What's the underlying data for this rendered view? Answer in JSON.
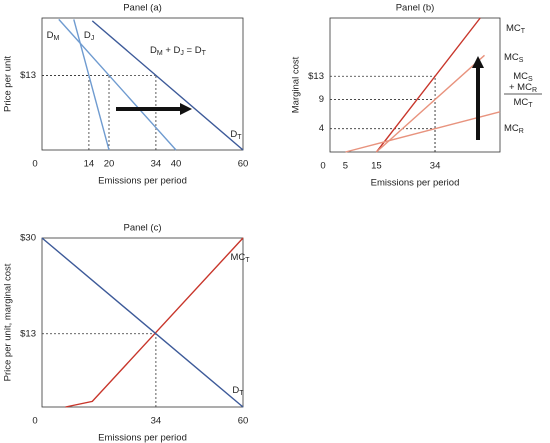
{
  "chart_data": [
    {
      "type": "line",
      "title": "Panel (a)",
      "x_label": "Emissions per period",
      "y_label": "Price per unit",
      "xlim": [
        0,
        60
      ],
      "ylim": [
        0,
        23
      ],
      "xticks": [
        0,
        14,
        20,
        34,
        40,
        60
      ],
      "yticks": [
        {
          "value": 13,
          "label": "$13"
        }
      ],
      "series": [
        {
          "name": [
            {
              "text": "D"
            },
            {
              "text": "M",
              "sub": true
            }
          ],
          "color": "#6f9bd0",
          "x": [
            5,
            40
          ],
          "values": [
            22.75,
            0
          ]
        },
        {
          "name": [
            {
              "text": "D"
            },
            {
              "text": "J",
              "sub": true
            }
          ],
          "color": "#6f9bd0",
          "x": [
            9.5,
            20
          ],
          "values": [
            22.75,
            0
          ]
        },
        {
          "name": [
            {
              "text": "D"
            },
            {
              "text": "T",
              "sub": true
            }
          ],
          "color": "#3d5a99",
          "x": [
            15,
            60
          ],
          "values": [
            22.5,
            0
          ]
        }
      ],
      "guides": [
        {
          "x": 14,
          "y": 13
        },
        {
          "x": 20,
          "y": 13
        },
        {
          "x": 34,
          "y": 13
        }
      ],
      "annotation_lines": [
        [
          {
            "text": "D"
          },
          {
            "text": "M",
            "sub": true
          },
          {
            "text": " + D"
          },
          {
            "text": "J",
            "sub": true
          },
          {
            "text": " = D"
          },
          {
            "text": "T",
            "sub": true
          }
        ]
      ]
    },
    {
      "type": "line",
      "title": "Panel (b)",
      "x_label": "Emissions per period",
      "y_label": "Marginal cost",
      "xlim": [
        0,
        55
      ],
      "ylim": [
        0,
        23
      ],
      "xticks": [
        0,
        5,
        15,
        34
      ],
      "yticks": [
        4,
        9,
        {
          "value": 13,
          "label": "$13"
        }
      ],
      "series": [
        {
          "name": [
            {
              "text": "MC"
            },
            {
              "text": "T",
              "sub": true
            }
          ],
          "color": "#c8362b",
          "x": [
            15,
            48.6
          ],
          "values": [
            0,
            23
          ]
        },
        {
          "name": [
            {
              "text": "MC"
            },
            {
              "text": "S",
              "sub": true
            }
          ],
          "color": "#e8937e",
          "x": [
            15,
            50
          ],
          "values": [
            0,
            16.6
          ]
        },
        {
          "name": [
            {
              "text": "MC"
            },
            {
              "text": "R",
              "sub": true
            }
          ],
          "color": "#e8937e",
          "x": [
            5,
            55
          ],
          "values": [
            0,
            6.9
          ]
        }
      ],
      "guides": [
        {
          "x": 34,
          "y": 13
        },
        {
          "x": 34,
          "y": 9
        },
        {
          "x": 34,
          "y": 4
        }
      ],
      "annotation_lines": [
        [
          {
            "text": "MC"
          },
          {
            "text": "S",
            "sub": true
          }
        ],
        [
          {
            "text": "+ MC"
          },
          {
            "text": "R",
            "sub": true
          }
        ],
        [
          {
            "text": "MC"
          },
          {
            "text": "T",
            "sub": true
          }
        ]
      ]
    },
    {
      "type": "line",
      "title": "Panel (c)",
      "x_label": "Emissions per period",
      "y_label": "Price per unit, marginal cost",
      "xlim": [
        0,
        60
      ],
      "ylim": [
        0,
        30
      ],
      "xticks": [
        0,
        34,
        60
      ],
      "yticks": [
        {
          "value": 13,
          "label": "$13"
        },
        {
          "value": 30,
          "label": "$30"
        }
      ],
      "series": [
        {
          "name": [
            {
              "text": "MC"
            },
            {
              "text": "T",
              "sub": true
            }
          ],
          "color": "#c8362b",
          "x": [
            7,
            15,
            60
          ],
          "values": [
            0,
            1,
            30
          ]
        },
        {
          "name": [
            {
              "text": "D"
            },
            {
              "text": "T",
              "sub": true
            }
          ],
          "color": "#3d5a99",
          "x": [
            0,
            60
          ],
          "values": [
            30,
            0
          ]
        }
      ],
      "guides": [
        {
          "x": 34,
          "y": 13
        }
      ]
    }
  ]
}
